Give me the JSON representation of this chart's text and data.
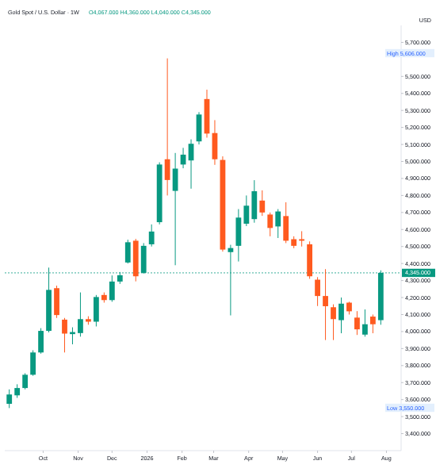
{
  "chart_data": {
    "type": "candlestick",
    "title": "Gold Spot / U.S. Dollar · 1W",
    "subtitle": "O4,067.000 H4,360.000 L4,040.000 C4,345.000",
    "annotations": [
      "USD",
      "High 5,606.000",
      "Low 3,550.000"
    ],
    "x": [
      "2025-09-01",
      "2025-09-08",
      "2025-09-15",
      "2025-09-22",
      "2025-09-29",
      "2025-10-06",
      "2025-10-13",
      "2025-10-20",
      "2025-10-27",
      "2025-11-03",
      "2025-11-10",
      "2025-11-17",
      "2025-11-24",
      "2025-12-01",
      "2025-12-08",
      "2025-12-15",
      "2025-12-22",
      "2025-12-29",
      "2026-01-05",
      "2026-01-12",
      "2026-01-19",
      "2026-01-26",
      "2026-02-02",
      "2026-02-09",
      "2026-02-16",
      "2026-02-23",
      "2026-03-02",
      "2026-03-09",
      "2026-03-16",
      "2026-03-23",
      "2026-03-30",
      "2026-04-06",
      "2026-04-13",
      "2026-04-20",
      "2026-04-27",
      "2026-05-04",
      "2026-05-11",
      "2026-05-18",
      "2026-05-25",
      "2026-06-01",
      "2026-06-08",
      "2026-06-15",
      "2026-06-22",
      "2026-06-29",
      "2026-07-06",
      "2026-07-13",
      "2026-07-20",
      "2026-07-27"
    ],
    "ohlc": [
      [
        3575,
        3660,
        3550,
        3630
      ],
      [
        3625,
        3690,
        3610,
        3668
      ],
      [
        3668,
        3755,
        3660,
        3746
      ],
      [
        3746,
        3890,
        3740,
        3877
      ],
      [
        3877,
        4020,
        3870,
        4004
      ],
      [
        4004,
        4376,
        3995,
        4245
      ],
      [
        4255,
        4270,
        4080,
        4097
      ],
      [
        4070,
        4080,
        3877,
        3988
      ],
      [
        3985,
        4025,
        3925,
        3997
      ],
      [
        3991,
        4230,
        3970,
        4073
      ],
      [
        4073,
        4090,
        4040,
        4058
      ],
      [
        4058,
        4215,
        4030,
        4203
      ],
      [
        4215,
        4230,
        4170,
        4185
      ],
      [
        4185,
        4330,
        4175,
        4294
      ],
      [
        4294,
        4350,
        4280,
        4331
      ],
      [
        4406,
        4540,
        4400,
        4525
      ],
      [
        4534,
        4545,
        4295,
        4325
      ],
      [
        4345,
        4520,
        4340,
        4504
      ],
      [
        4513,
        4630,
        4500,
        4588
      ],
      [
        4643,
        4995,
        4630,
        4982
      ],
      [
        5013,
        5606,
        4800,
        4891
      ],
      [
        4827,
        5050,
        4390,
        4958
      ],
      [
        4982,
        5080,
        4960,
        5040
      ],
      [
        5006,
        5130,
        4840,
        5104
      ],
      [
        5118,
        5290,
        5100,
        5276
      ],
      [
        5367,
        5422,
        5140,
        5164
      ],
      [
        5167,
        5243,
        4980,
        5013
      ],
      [
        5009,
        5030,
        4470,
        4482
      ],
      [
        4467,
        4510,
        4095,
        4491
      ],
      [
        4504,
        4720,
        4412,
        4670
      ],
      [
        4634,
        4800,
        4620,
        4740
      ],
      [
        4661,
        4890,
        4640,
        4825
      ],
      [
        4770,
        4830,
        4680,
        4700
      ],
      [
        4688,
        4700,
        4560,
        4609
      ],
      [
        4618,
        4720,
        4550,
        4706
      ],
      [
        4679,
        4760,
        4520,
        4534
      ],
      [
        4543,
        4560,
        4490,
        4504
      ],
      [
        4543,
        4590,
        4500,
        4534
      ],
      [
        4513,
        4530,
        4310,
        4325
      ],
      [
        4305,
        4320,
        4150,
        4209
      ],
      [
        4209,
        4367,
        3950,
        4149
      ],
      [
        4143,
        4160,
        3950,
        4073
      ],
      [
        4067,
        4200,
        3990,
        4164
      ],
      [
        4170,
        4175,
        4100,
        4119
      ],
      [
        4082,
        4120,
        3980,
        4013
      ],
      [
        3982,
        4130,
        3970,
        4043
      ],
      [
        4088,
        4100,
        3990,
        4043
      ],
      [
        4067,
        4360,
        4040,
        4345
      ]
    ],
    "colors": [
      "#089981",
      "#089981",
      "#089981",
      "#089981",
      "#089981",
      "#089981",
      "#ff5a1f",
      "#ff5a1f",
      "#089981",
      "#089981",
      "#ff5a1f",
      "#089981",
      "#ff5a1f",
      "#089981",
      "#089981",
      "#089981",
      "#ff5a1f",
      "#089981",
      "#089981",
      "#089981",
      "#ff5a1f",
      "#089981",
      "#089981",
      "#089981",
      "#089981",
      "#ff5a1f",
      "#ff5a1f",
      "#ff5a1f",
      "#089981",
      "#089981",
      "#089981",
      "#089981",
      "#ff5a1f",
      "#ff5a1f",
      "#089981",
      "#ff5a1f",
      "#ff5a1f",
      "#ff5a1f",
      "#ff5a1f",
      "#ff5a1f",
      "#ff5a1f",
      "#ff5a1f",
      "#089981",
      "#ff5a1f",
      "#ff5a1f",
      "#089981",
      "#ff5a1f",
      "#089981"
    ],
    "ref_lines": [
      {
        "axis": "y",
        "value": 4345,
        "label": "4,345.000",
        "color": "#089981",
        "line_style": "dotted"
      }
    ],
    "xlim": [
      "2025-08-28",
      "2026-08-14"
    ],
    "xticks": [
      {
        "value": "2025-10-01",
        "label": "Oct"
      },
      {
        "value": "2025-11-01",
        "label": "Nov"
      },
      {
        "value": "2025-12-01",
        "label": "Dec"
      },
      {
        "value": "2026-01-01",
        "label": "2026"
      },
      {
        "value": "2026-02-01",
        "label": "Feb"
      },
      {
        "value": "2026-03-01",
        "label": "Mar"
      },
      {
        "value": "2026-04-01",
        "label": "Apr"
      },
      {
        "value": "2026-05-01",
        "label": "May"
      },
      {
        "value": "2026-06-01",
        "label": "Jun"
      },
      {
        "value": "2026-07-01",
        "label": "Jul"
      },
      {
        "value": "2026-08-01",
        "label": "Aug"
      }
    ],
    "ylim": [
      3300,
      5800
    ],
    "yticks": [
      {
        "value": 3400,
        "label": "3,400.000"
      },
      {
        "value": 3500,
        "label": "3,500.000"
      },
      {
        "value": 3600,
        "label": "3,600.000"
      },
      {
        "value": 3700,
        "label": "3,700.000"
      },
      {
        "value": 3800,
        "label": "3,800.000"
      },
      {
        "value": 3900,
        "label": "3,900.000"
      },
      {
        "value": 4000,
        "label": "4,000.000"
      },
      {
        "value": 4100,
        "label": "4,100.000"
      },
      {
        "value": 4200,
        "label": "4,200.000"
      },
      {
        "value": 4300,
        "label": "4,300.000"
      },
      {
        "value": 4400,
        "label": "4,400.000"
      },
      {
        "value": 4500,
        "label": "4,500.000"
      },
      {
        "value": 4600,
        "label": "4,600.000"
      },
      {
        "value": 4700,
        "label": "4,700.000"
      },
      {
        "value": 4800,
        "label": "4,800.000"
      },
      {
        "value": 4900,
        "label": "4,900.000"
      },
      {
        "value": 5000,
        "label": "5,000.000"
      },
      {
        "value": 5100,
        "label": "5,100.000"
      },
      {
        "value": 5200,
        "label": "5,200.000"
      },
      {
        "value": 5300,
        "label": "5,300.000"
      },
      {
        "value": 5400,
        "label": "5,400.000"
      },
      {
        "value": 5500,
        "label": "5,500.000"
      },
      {
        "value": 5700,
        "label": "5,700.000"
      }
    ]
  }
}
